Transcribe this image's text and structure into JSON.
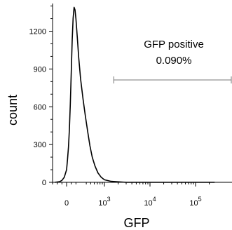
{
  "chart_data": {
    "type": "line",
    "xlabel": "GFP",
    "ylabel": "count",
    "ylim": [
      0,
      1420
    ],
    "x_scale": "biexponential",
    "x_range": [
      -350,
      262144
    ],
    "y_ticks": [
      {
        "value": 0,
        "label": "0"
      },
      {
        "value": 300,
        "label": "300"
      },
      {
        "value": 600,
        "label": "600"
      },
      {
        "value": 900,
        "label": "900"
      },
      {
        "value": 1200,
        "label": "1200"
      }
    ],
    "x_ticks": [
      {
        "value": 0,
        "label": "0",
        "exp": ""
      },
      {
        "value": 1000,
        "label": "10",
        "exp": "3"
      },
      {
        "value": 10000,
        "label": "10",
        "exp": "4"
      },
      {
        "value": 100000,
        "label": "10",
        "exp": "5"
      }
    ],
    "series": [
      {
        "values_x": [
          -250,
          -150,
          -100,
          -50,
          0,
          20,
          40,
          60,
          80,
          100,
          120,
          140,
          160,
          180,
          200,
          230,
          260,
          300,
          340,
          380,
          430,
          480,
          540,
          620,
          720,
          850,
          1000,
          1400,
          3000,
          262144
        ],
        "values_y": [
          0,
          5,
          15,
          40,
          100,
          180,
          280,
          420,
          620,
          880,
          1130,
          1300,
          1390,
          1370,
          1300,
          1150,
          990,
          820,
          660,
          530,
          400,
          290,
          200,
          130,
          75,
          40,
          20,
          8,
          0,
          0
        ]
      }
    ],
    "gate": {
      "label": "GFP positive",
      "value": "0.090%",
      "x_start": 1600,
      "x_end": 262144,
      "y": 900
    }
  }
}
